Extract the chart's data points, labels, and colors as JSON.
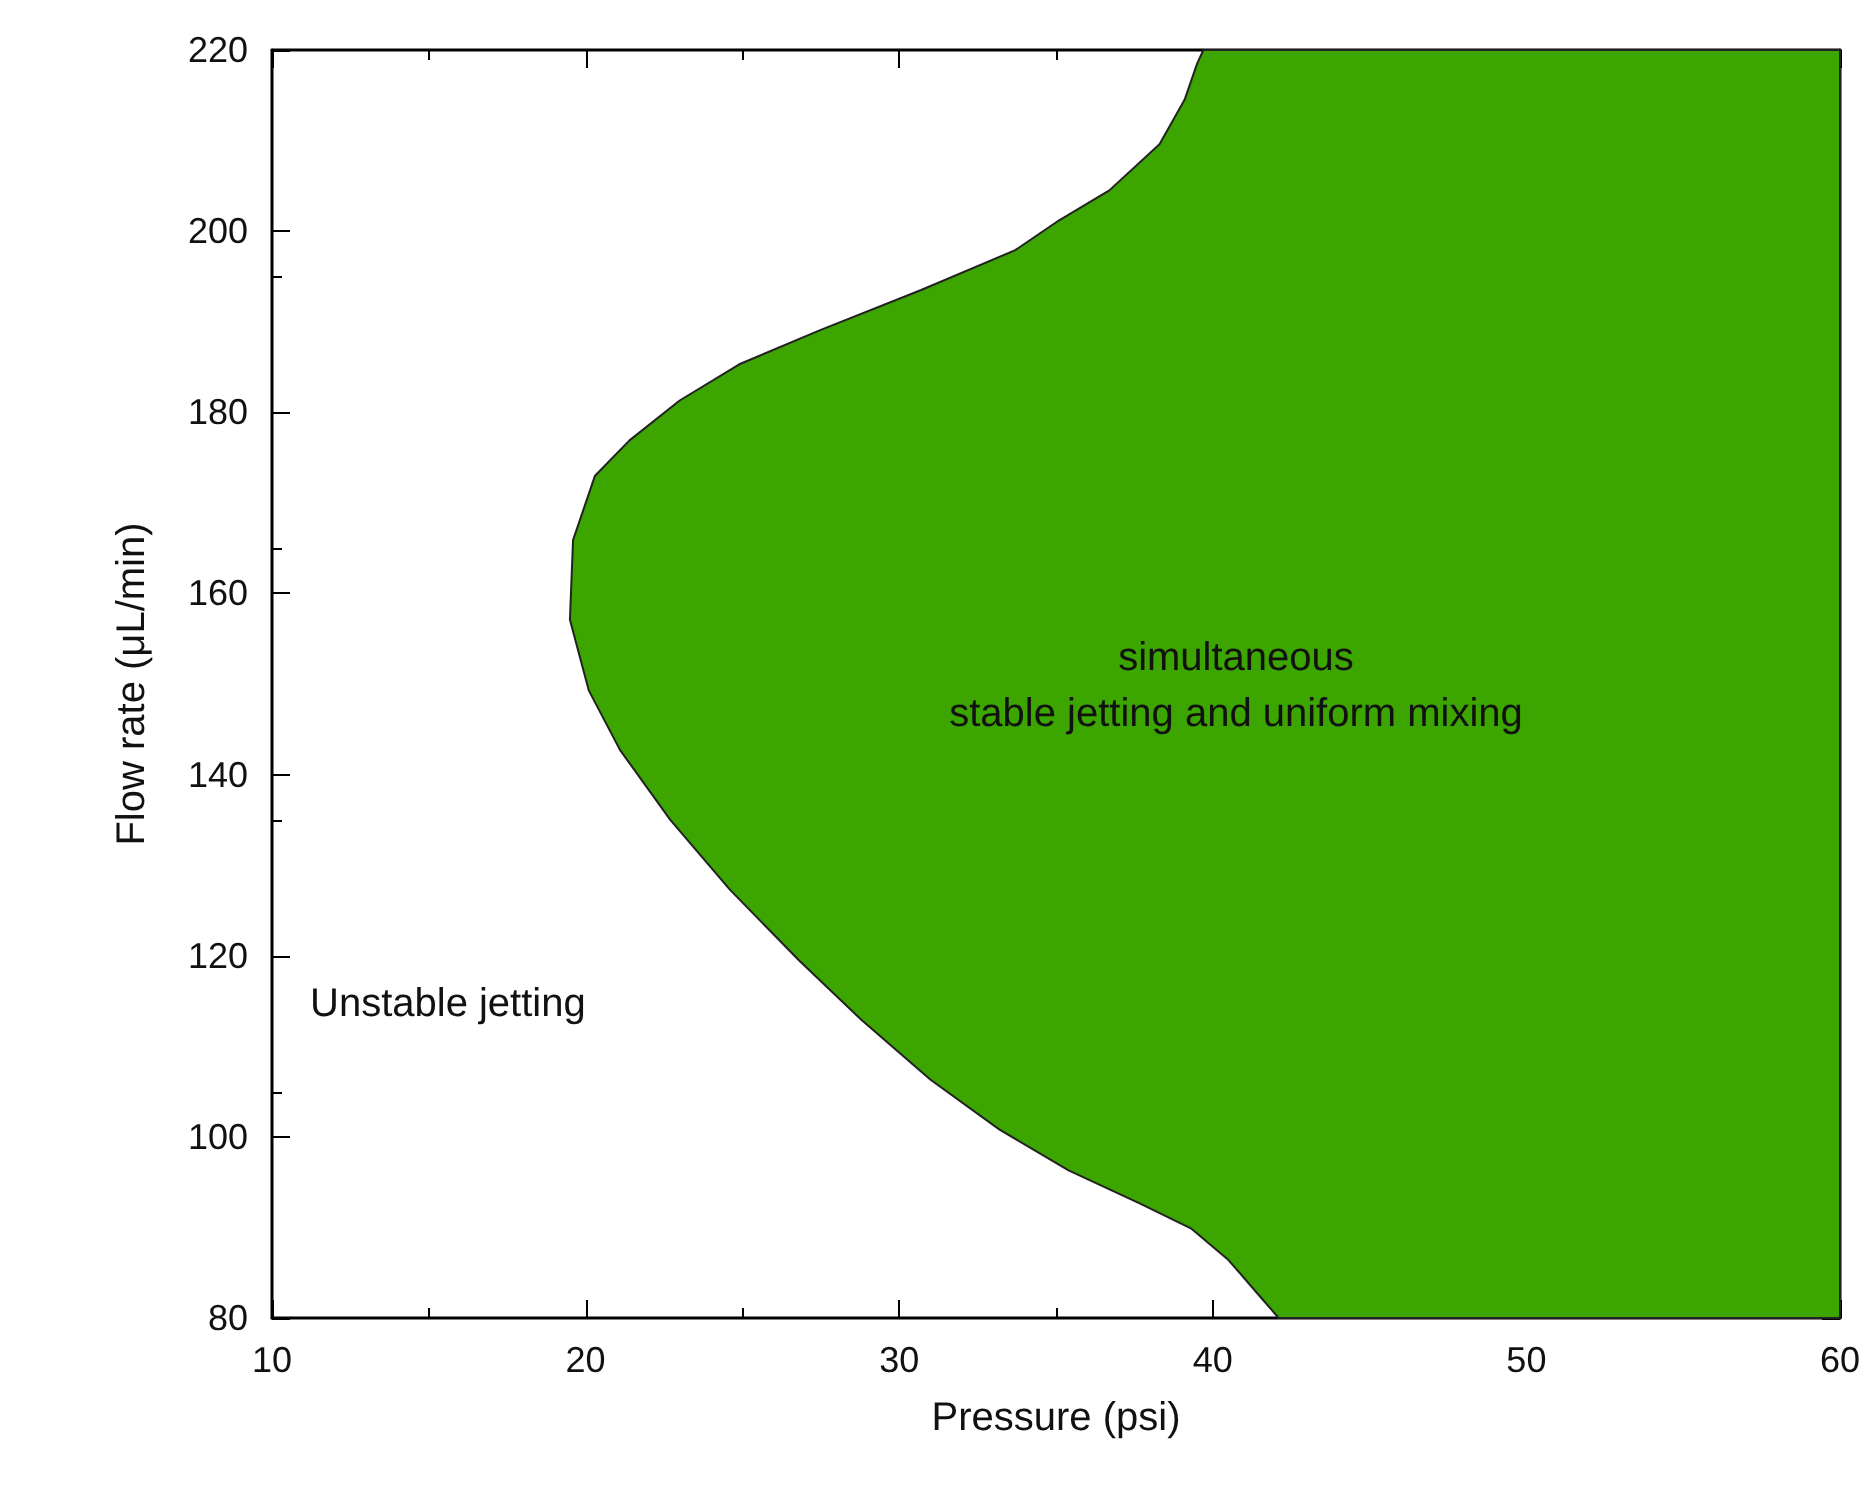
{
  "chart_data": {
    "type": "area",
    "xlabel": "Pressure (psi)",
    "ylabel": "Flow rate (μL/min)",
    "xlim": [
      10,
      60
    ],
    "xticks": [
      10,
      20,
      30,
      40,
      50,
      60
    ],
    "ylim": [
      80,
      220
    ],
    "yticks": [
      80,
      100,
      120,
      140,
      160,
      180,
      200,
      220
    ],
    "grid": false,
    "series": [
      {
        "color": "#3ca500",
        "x": [
          42.1,
          41.5,
          40.5,
          39.3,
          37.7,
          35.4,
          33.2,
          31.0,
          28.8,
          26.8,
          24.6,
          22.7,
          21.1,
          20.1,
          19.5,
          19.6,
          20.3,
          21.4,
          23.0,
          24.9,
          27.5,
          30.7,
          33.7,
          35.1,
          36.7,
          38.3,
          39.1,
          39.5,
          39.7,
          60,
          60
        ],
        "values": [
          80,
          82.4,
          86.4,
          89.9,
          92.6,
          96.3,
          100.8,
          106.3,
          112.9,
          119.5,
          127.3,
          135.0,
          142.7,
          149.3,
          157.1,
          165.9,
          173.0,
          176.9,
          181.3,
          185.3,
          189.1,
          193.5,
          197.9,
          201.2,
          204.5,
          209.6,
          214.5,
          218.5,
          220,
          220,
          80
        ]
      }
    ],
    "annotations": [
      "simultaneous\nstable jetting and uniform mixing",
      "Unstable jetting"
    ]
  }
}
